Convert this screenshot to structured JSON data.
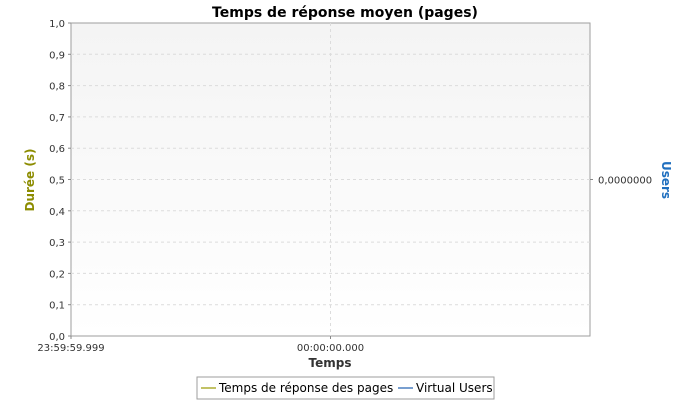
{
  "chart_data": {
    "type": "line",
    "title": "Temps de réponse moyen (pages)",
    "xlabel": "Temps",
    "ylabel": "Durée (s)",
    "y2label": "Users",
    "ylim": [
      0,
      1.0
    ],
    "y_ticks": [
      "0,0",
      "0,1",
      "0,2",
      "0,3",
      "0,4",
      "0,5",
      "0,6",
      "0,7",
      "0,8",
      "0,9",
      "1,0"
    ],
    "y2_ticks": [
      "0,0000000"
    ],
    "x_ticks": [
      "23:59:59.999",
      "00:00:00.000"
    ],
    "grid": true,
    "legend_position": "bottom",
    "series": [
      {
        "name": "Temps de réponse des pages",
        "axis": "left",
        "color": "#9a9a00",
        "values": []
      },
      {
        "name": "Virtual Users",
        "axis": "right",
        "color": "#1f5fb0",
        "values": []
      }
    ],
    "colors": {
      "ylabel": "#8c8c00",
      "y2label": "#1f6fbf"
    }
  }
}
